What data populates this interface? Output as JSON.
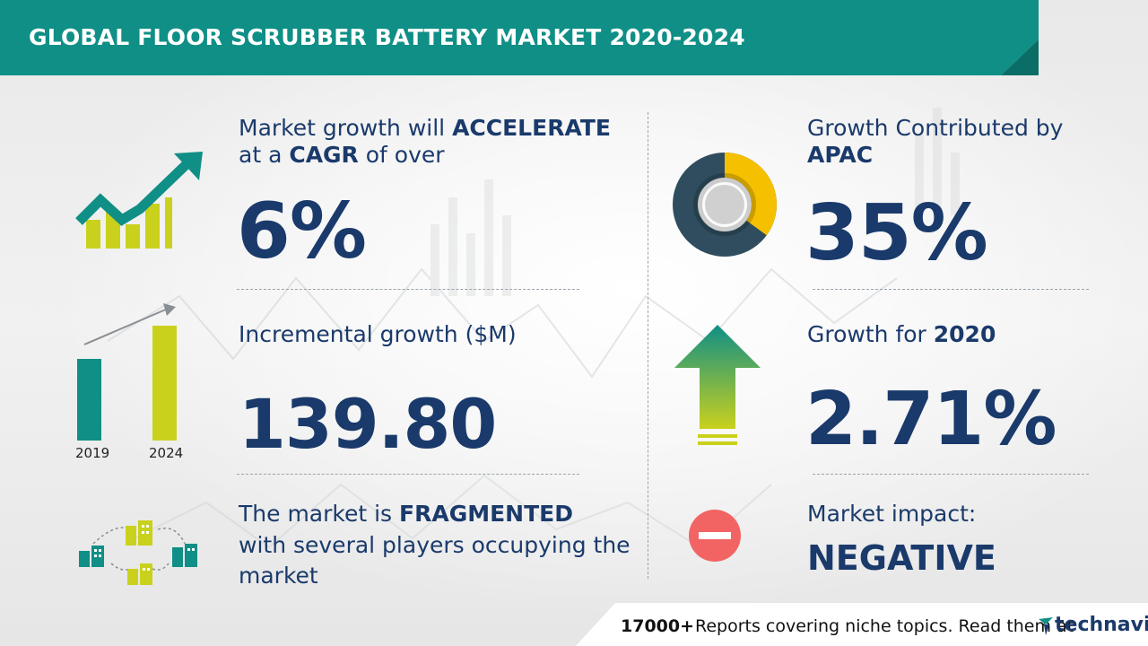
{
  "header": {
    "title": "GLOBAL FLOOR SCRUBBER BATTERY MARKET 2020-2024"
  },
  "cagr": {
    "line1_prefix": "Market growth will ",
    "line1_emph": "ACCELERATE",
    "line2_prefix": "at a ",
    "line2_emph": "CAGR",
    "line2_suffix": " of over",
    "value": "6%"
  },
  "incremental": {
    "label": "Incremental growth ($M)",
    "value": "139.80",
    "year_start": "2019",
    "year_end": "2024"
  },
  "structure": {
    "line1_prefix": "The market is ",
    "line1_emph": "FRAGMENTED",
    "line2": "with several players occupying the",
    "line3": "market"
  },
  "region": {
    "label": "Growth Contributed by",
    "region_name": "APAC",
    "value": "35%",
    "share": 0.35
  },
  "yoy": {
    "label_prefix": "Growth for ",
    "year": "2020",
    "value": "2.71%"
  },
  "impact": {
    "label": "Market impact:",
    "value": "NEGATIVE"
  },
  "footer": {
    "count": "17000+",
    "text": "Reports covering niche topics. Read them at",
    "brand": "technavio"
  },
  "colors": {
    "teal": "#0f8f86",
    "lime": "#c9d11d",
    "navy": "#1a3a6b",
    "yellow": "#f5c000",
    "slate": "#2f4d5f",
    "red": "#f26464"
  }
}
